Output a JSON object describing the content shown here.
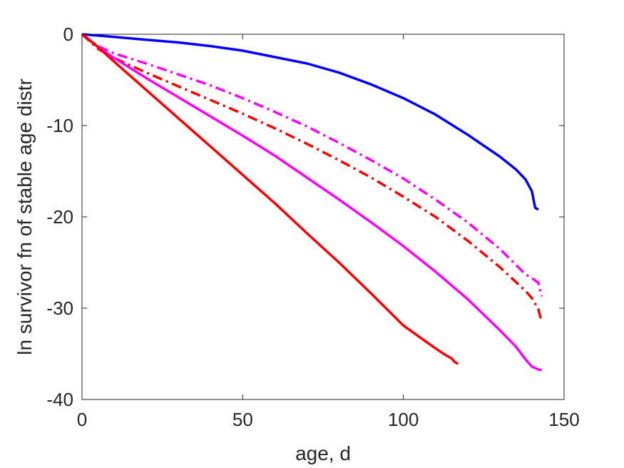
{
  "chart_data": {
    "type": "line",
    "title": "",
    "xlabel": "age, d",
    "ylabel": "ln survivor fn of stable age distr",
    "xlim": [
      0,
      150
    ],
    "ylim": [
      -40,
      0
    ],
    "xticks": [
      0,
      50,
      100,
      150
    ],
    "yticks": [
      0,
      -10,
      -20,
      -30,
      -40
    ],
    "xtick_labels": [
      "0",
      "50",
      "100",
      "150"
    ],
    "ytick_labels": [
      "0",
      "-10",
      "-20",
      "-30",
      "-40"
    ],
    "grid": false,
    "legend": "none",
    "series": [
      {
        "color": "#0000ff",
        "style": "solid",
        "x": [
          0,
          10,
          20,
          30,
          40,
          50,
          60,
          70,
          80,
          90,
          100,
          110,
          120,
          130,
          135,
          138,
          140,
          141,
          142
        ],
        "y": [
          0,
          -0.3,
          -0.6,
          -0.9,
          -1.3,
          -1.8,
          -2.5,
          -3.2,
          -4.2,
          -5.5,
          -7.0,
          -8.8,
          -11.0,
          -13.4,
          -14.8,
          -15.9,
          -17.2,
          -19.0,
          -19.2
        ]
      },
      {
        "color": "#ff00ff",
        "style": "dashdot",
        "x": [
          0,
          5,
          10,
          20,
          30,
          40,
          50,
          60,
          70,
          80,
          90,
          100,
          110,
          120,
          130,
          138,
          140,
          142,
          143
        ],
        "y": [
          0,
          -1.3,
          -2.1,
          -3.2,
          -4.4,
          -5.6,
          -7.0,
          -8.5,
          -10.1,
          -11.9,
          -13.8,
          -15.8,
          -18.1,
          -20.6,
          -23.5,
          -26.3,
          -26.7,
          -27.2,
          -28.7
        ]
      },
      {
        "color": "#ff0000",
        "style": "dashdot",
        "x": [
          0,
          5,
          10,
          20,
          30,
          40,
          50,
          60,
          70,
          80,
          90,
          100,
          110,
          120,
          130,
          138,
          140,
          142,
          143
        ],
        "y": [
          0,
          -1.6,
          -2.6,
          -4.2,
          -5.7,
          -7.2,
          -8.7,
          -10.3,
          -12.0,
          -13.8,
          -15.7,
          -17.8,
          -20.0,
          -22.6,
          -25.5,
          -28.1,
          -28.9,
          -30.1,
          -31.5
        ]
      },
      {
        "color": "#ff00ff",
        "style": "solid",
        "x": [
          0,
          5,
          10,
          20,
          30,
          40,
          50,
          60,
          70,
          80,
          90,
          100,
          110,
          120,
          130,
          135,
          138,
          140,
          142,
          143
        ],
        "y": [
          0,
          -1.4,
          -2.6,
          -4.8,
          -6.9,
          -9.0,
          -11.1,
          -13.3,
          -15.7,
          -18.1,
          -20.6,
          -23.2,
          -26.0,
          -29.0,
          -32.4,
          -34.2,
          -35.6,
          -36.4,
          -36.7,
          -36.8
        ]
      },
      {
        "color": "#ff0000",
        "style": "solid",
        "x": [
          0,
          5,
          10,
          20,
          30,
          40,
          50,
          60,
          70,
          80,
          90,
          100,
          110,
          113,
          115,
          116,
          117
        ],
        "y": [
          0,
          -1.4,
          -3.0,
          -6.1,
          -9.2,
          -12.3,
          -15.4,
          -18.5,
          -21.8,
          -25.0,
          -28.4,
          -31.9,
          -34.4,
          -35.1,
          -35.5,
          -35.9,
          -36.1
        ]
      }
    ]
  }
}
